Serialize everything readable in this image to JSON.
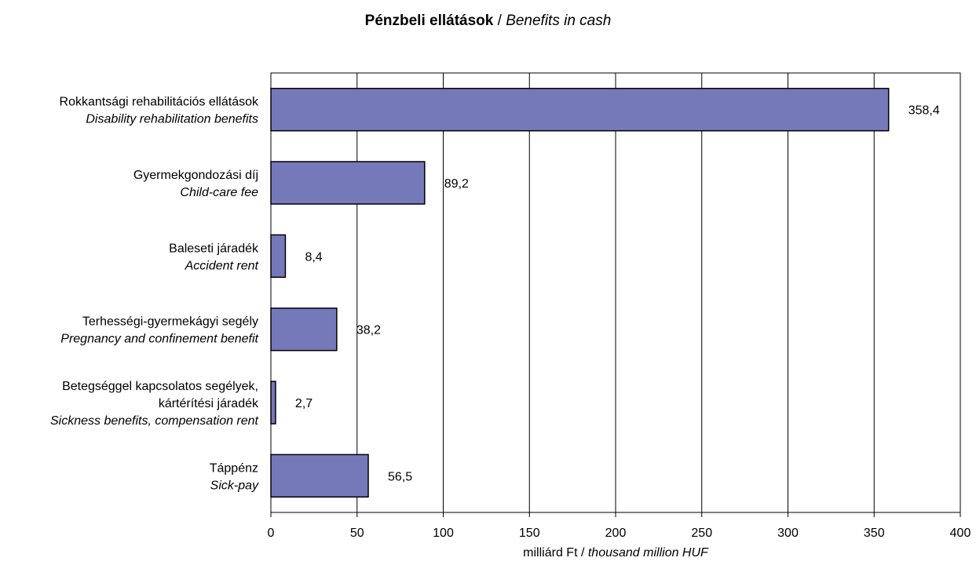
{
  "title": {
    "hu": "Pénzbeli ellátások",
    "separator": " / ",
    "en": "Benefits in cash"
  },
  "chart_data": {
    "type": "bar",
    "orientation": "horizontal",
    "categories": [
      {
        "hu": [
          "Rokkantsági rehabilitációs ellátások"
        ],
        "en": [
          "Disability rehabilitation benefits"
        ]
      },
      {
        "hu": [
          "Gyermekgondozási díj"
        ],
        "en": [
          "Child-care fee"
        ]
      },
      {
        "hu": [
          "Baleseti járadék"
        ],
        "en": [
          "Accident rent"
        ]
      },
      {
        "hu": [
          "Terhességi-gyermekágyi segély"
        ],
        "en": [
          "Pregnancy and confinement benefit"
        ]
      },
      {
        "hu": [
          "Betegséggel kapcsolatos segélyek,",
          "kártérítési járadék"
        ],
        "en": [
          "Sickness benefits, compensation rent"
        ]
      },
      {
        "hu": [
          "Táppénz"
        ],
        "en": [
          "Sick-pay"
        ]
      }
    ],
    "values": [
      358.4,
      89.2,
      8.4,
      38.2,
      2.7,
      56.5
    ],
    "data_labels": [
      "358,4",
      "89,2",
      "8,4",
      "38,2",
      "2,7",
      "56,5"
    ],
    "xlim": [
      0,
      400
    ],
    "xticks": [
      0,
      50,
      100,
      150,
      200,
      250,
      300,
      350,
      400
    ],
    "xlabel": {
      "hu": "milliárd Ft",
      "separator": " / ",
      "en": "thousand million HUF"
    },
    "ylabel": "",
    "grid": "vertical",
    "legend": "none",
    "bar_color": "#7579b9",
    "bar_stroke": "#000000"
  }
}
